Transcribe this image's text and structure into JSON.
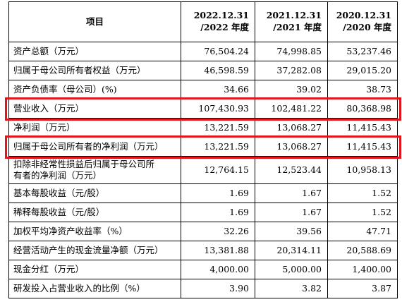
{
  "table": {
    "headers": {
      "item": "项目",
      "years": [
        {
          "line1": "2022.12.31",
          "line2": "/2022 年度"
        },
        {
          "line1": "2021.12.31",
          "line2": "/2021 年度"
        },
        {
          "line1": "2020.12.31",
          "line2": "/2020 年度"
        }
      ]
    },
    "rows": [
      {
        "label": [
          "资产总额（万元）"
        ],
        "values": [
          "76,504.24",
          "74,998.85",
          "53,237.46"
        ]
      },
      {
        "label": [
          "归属于母公司所有者权益（万元）"
        ],
        "values": [
          "46,598.59",
          "37,282.08",
          "29,015.20"
        ]
      },
      {
        "label": [
          "资产负债率（母公司）(%)"
        ],
        "values": [
          "34.66",
          "39.02",
          "38.73"
        ]
      },
      {
        "label": [
          "营业收入（万元）"
        ],
        "values": [
          "107,430.93",
          "102,481.22",
          "80,368.98"
        ],
        "highlight": true
      },
      {
        "label": [
          "净利润（万元）"
        ],
        "values": [
          "13,221.59",
          "13,068.27",
          "11,415.43"
        ]
      },
      {
        "label": [
          "归属于母公司所有者的净利润（万元）"
        ],
        "values": [
          "13,221.59",
          "13,068.27",
          "11,415.43"
        ],
        "highlight": true
      },
      {
        "label": [
          "扣除非经常性损益后归属于母公司所",
          "有者的净利润（万元）"
        ],
        "values": [
          "12,764.15",
          "12,523.44",
          "10,958.13"
        ]
      },
      {
        "label": [
          "基本每股收益（元/股）"
        ],
        "values": [
          "1.69",
          "1.67",
          "1.52"
        ]
      },
      {
        "label": [
          "稀释每股收益（元/股）"
        ],
        "values": [
          "1.69",
          "1.67",
          "1.52"
        ]
      },
      {
        "label": [
          "加权平均净资产收益率（%）"
        ],
        "values": [
          "32.26",
          "39.56",
          "47.71"
        ]
      },
      {
        "label": [
          "经营活动产生的现金流量净额（万元）"
        ],
        "values": [
          "13,381.88",
          "20,314.11",
          "20,588.69"
        ]
      },
      {
        "label": [
          "现金分红（万元）"
        ],
        "values": [
          "4,000.00",
          "5,000.00",
          "1,400.00"
        ]
      },
      {
        "label": [
          "研发投入占营业收入的比例（%）"
        ],
        "values": [
          "3.90",
          "3.82",
          "3.87"
        ]
      }
    ]
  },
  "colors": {
    "highlight_border": "#e0161c",
    "grid": "#000000"
  }
}
